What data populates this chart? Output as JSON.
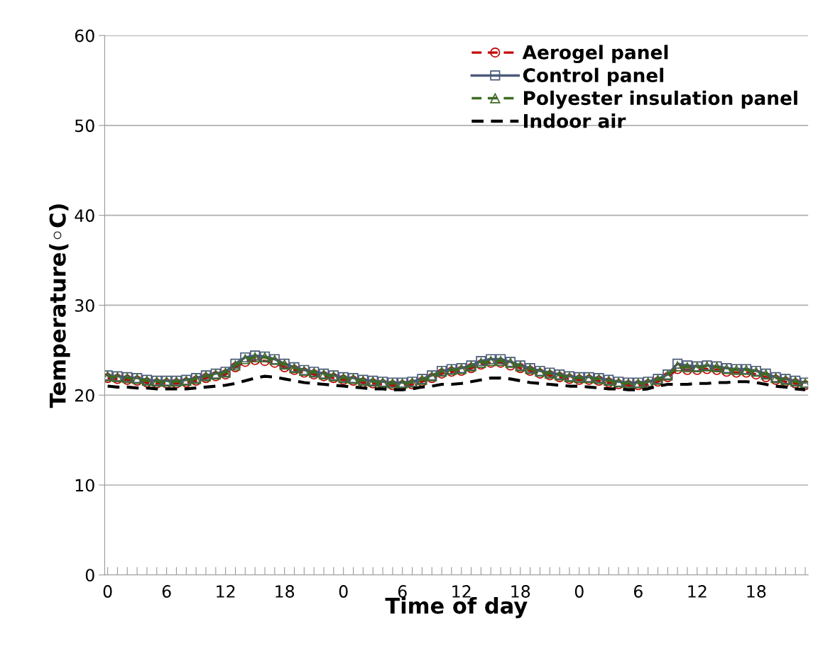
{
  "chart_data": {
    "type": "line",
    "xlabel": "Time of day",
    "ylabel": "Temperature(◦C)",
    "categories": [
      "0",
      null,
      null,
      null,
      null,
      null,
      "6",
      null,
      null,
      null,
      null,
      null,
      "12",
      null,
      null,
      null,
      null,
      null,
      "18",
      null,
      null,
      null,
      null,
      null,
      "0",
      null,
      null,
      null,
      null,
      null,
      "6",
      null,
      null,
      null,
      null,
      null,
      "12",
      null,
      null,
      null,
      null,
      null,
      "18",
      null,
      null,
      null,
      null,
      null,
      "0",
      null,
      null,
      null,
      null,
      null,
      "6",
      null,
      null,
      null,
      null,
      null,
      "12",
      null,
      null,
      null,
      null,
      null,
      "18",
      null,
      null,
      null,
      null,
      null
    ],
    "ylim": [
      0,
      60
    ],
    "yticks": [
      0,
      10,
      20,
      30,
      40,
      50,
      60
    ],
    "grid": "y",
    "legend": "top right",
    "series": [
      {
        "name": "Aerogel panel",
        "color": "#c00000",
        "marker": "circle",
        "line_style": "dashed",
        "values": [
          21.9,
          21.8,
          21.7,
          21.6,
          21.4,
          21.3,
          21.3,
          21.3,
          21.4,
          21.6,
          21.9,
          22.1,
          22.3,
          23.1,
          23.7,
          23.9,
          23.8,
          23.6,
          23.1,
          22.8,
          22.5,
          22.3,
          22.1,
          21.9,
          21.7,
          21.6,
          21.4,
          21.3,
          21.2,
          21.1,
          21.1,
          21.2,
          21.5,
          21.9,
          22.4,
          22.6,
          22.7,
          23.0,
          23.4,
          23.6,
          23.6,
          23.3,
          23.0,
          22.7,
          22.4,
          22.2,
          22.0,
          21.8,
          21.7,
          21.7,
          21.6,
          21.4,
          21.2,
          21.1,
          21.1,
          21.2,
          21.5,
          22.0,
          22.9,
          22.8,
          22.8,
          22.9,
          22.8,
          22.6,
          22.5,
          22.5,
          22.3,
          22.0,
          21.7,
          21.5,
          21.3,
          21.1
        ]
      },
      {
        "name": "Control panel",
        "color": "#4a5a7a",
        "marker": "square",
        "line_style": "solid",
        "values": [
          22.2,
          22.1,
          22.0,
          21.9,
          21.7,
          21.6,
          21.6,
          21.6,
          21.7,
          21.9,
          22.2,
          22.4,
          22.6,
          23.5,
          24.2,
          24.4,
          24.3,
          24.0,
          23.5,
          23.1,
          22.8,
          22.6,
          22.4,
          22.2,
          22.0,
          21.9,
          21.7,
          21.6,
          21.5,
          21.4,
          21.4,
          21.5,
          21.8,
          22.2,
          22.7,
          22.9,
          23.0,
          23.3,
          23.8,
          24.0,
          24.0,
          23.7,
          23.3,
          23.0,
          22.7,
          22.5,
          22.3,
          22.1,
          22.0,
          22.0,
          21.9,
          21.7,
          21.5,
          21.4,
          21.4,
          21.5,
          21.8,
          22.3,
          23.5,
          23.3,
          23.2,
          23.3,
          23.2,
          23.0,
          22.9,
          22.9,
          22.7,
          22.4,
          22.0,
          21.8,
          21.6,
          21.4
        ]
      },
      {
        "name": "Polyester insulation panel",
        "color": "#3d6b22",
        "marker": "triangle",
        "line_style": "dashed",
        "values": [
          22.1,
          22.0,
          21.9,
          21.8,
          21.6,
          21.5,
          21.5,
          21.5,
          21.6,
          21.8,
          22.1,
          22.3,
          22.5,
          23.3,
          24.0,
          24.2,
          24.2,
          23.9,
          23.4,
          23.0,
          22.7,
          22.5,
          22.3,
          22.1,
          21.9,
          21.8,
          21.6,
          21.5,
          21.4,
          21.3,
          21.3,
          21.4,
          21.7,
          22.1,
          22.6,
          22.8,
          22.9,
          23.2,
          23.6,
          23.8,
          23.8,
          23.6,
          23.2,
          22.9,
          22.6,
          22.4,
          22.2,
          22.0,
          21.9,
          21.9,
          21.8,
          21.6,
          21.4,
          21.3,
          21.3,
          21.4,
          21.7,
          22.2,
          23.2,
          23.1,
          23.1,
          23.2,
          23.1,
          22.9,
          22.8,
          22.8,
          22.6,
          22.3,
          21.9,
          21.7,
          21.5,
          21.3
        ]
      },
      {
        "name": "Indoor air",
        "color": "#000000",
        "marker": "none",
        "line_style": "dashed",
        "values": [
          21.0,
          20.9,
          20.9,
          20.8,
          20.8,
          20.7,
          20.7,
          20.7,
          20.7,
          20.8,
          20.9,
          21.0,
          21.1,
          21.3,
          21.6,
          21.9,
          22.1,
          22.0,
          21.8,
          21.6,
          21.4,
          21.3,
          21.2,
          21.1,
          21.0,
          20.9,
          20.8,
          20.7,
          20.7,
          20.6,
          20.6,
          20.7,
          20.9,
          21.0,
          21.2,
          21.2,
          21.3,
          21.5,
          21.7,
          21.9,
          21.9,
          21.8,
          21.6,
          21.4,
          21.3,
          21.2,
          21.1,
          21.0,
          21.0,
          20.9,
          20.8,
          20.7,
          20.7,
          20.6,
          20.6,
          20.7,
          21.0,
          21.2,
          21.2,
          21.2,
          21.3,
          21.3,
          21.4,
          21.4,
          21.5,
          21.5,
          21.4,
          21.2,
          21.0,
          20.9,
          20.7,
          20.6
        ]
      }
    ]
  }
}
